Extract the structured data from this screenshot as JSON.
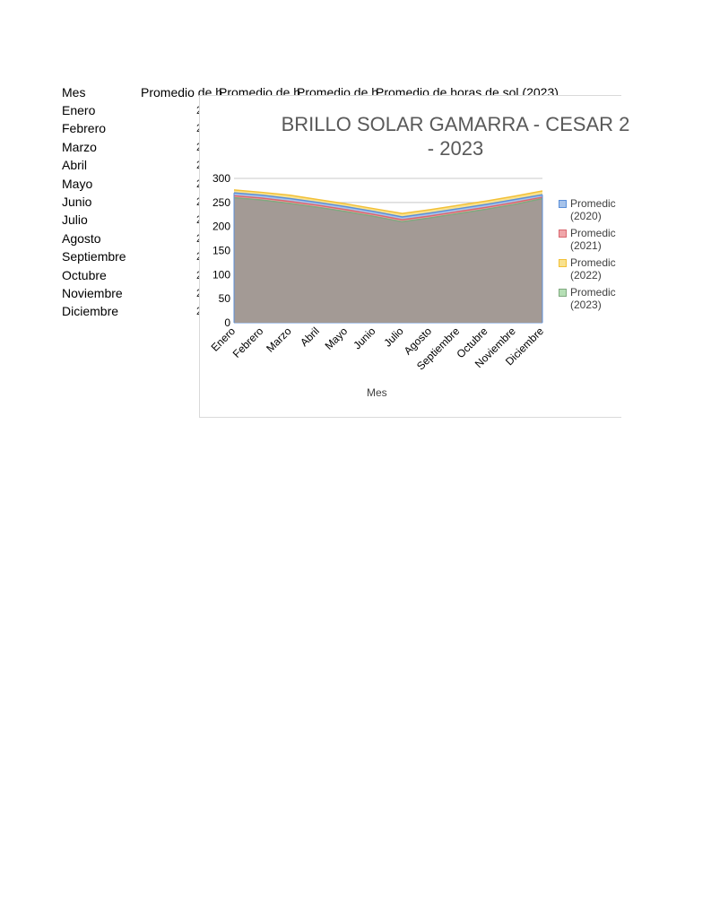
{
  "sheet": {
    "header_col_a": "Mes",
    "header_cols": [
      "Promedio de h",
      "Promedio de h",
      "Promedio de h",
      "Promedio de horas de sol (2023)"
    ],
    "months": [
      "Enero",
      "Febrero",
      "Marzo",
      "Abril",
      "Mayo",
      "Junio",
      "Julio",
      "Agosto",
      "Septiembre",
      "Octubre",
      "Noviembre",
      "Diciembre"
    ],
    "truncated_value_glyph": "2"
  },
  "chart_data": {
    "type": "area",
    "title": "BRILLO SOLAR GAMARRA - CESAR 2",
    "title_line2": "- 2023",
    "xlabel": "Mes",
    "ylabel": "",
    "ylim": [
      0,
      300
    ],
    "yticks": [
      0,
      50,
      100,
      150,
      200,
      250,
      300
    ],
    "grid": true,
    "legend_position": "right",
    "categories": [
      "Enero",
      "Febrero",
      "Marzo",
      "Abril",
      "Mayo",
      "Junio",
      "Julio",
      "Agosto",
      "Septiembre",
      "Octubre",
      "Noviembre",
      "Diciembre"
    ],
    "series": [
      {
        "name": "Promedio (2020)",
        "legend_line1": "Promedic",
        "legend_line2": "(2020)",
        "color": "#5b8fd9",
        "fill": "#a7c3ea",
        "values": [
          270,
          265,
          258,
          250,
          241,
          231,
          220,
          228,
          237,
          246,
          256,
          266
        ]
      },
      {
        "name": "Promedio (2021)",
        "legend_line1": "Promedic",
        "legend_line2": "(2021)",
        "color": "#d9676f",
        "fill": "#f0a6aa",
        "values": [
          264,
          259,
          252,
          244,
          235,
          225,
          214,
          222,
          231,
          240,
          250,
          261
        ]
      },
      {
        "name": "Promedio (2022)",
        "legend_line1": "Promedic",
        "legend_line2": "(2022)",
        "color": "#f2c037",
        "fill": "#f9e28f",
        "values": [
          276,
          271,
          265,
          256,
          247,
          237,
          227,
          235,
          244,
          253,
          263,
          274
        ]
      },
      {
        "name": "Promedio (2023)",
        "legend_line1": "Promedic",
        "legend_line2": "(2023)",
        "color": "#7fa97f",
        "fill": "#a39a95",
        "values": [
          260,
          255,
          248,
          240,
          231,
          221,
          210,
          218,
          227,
          236,
          246,
          258
        ]
      }
    ]
  }
}
